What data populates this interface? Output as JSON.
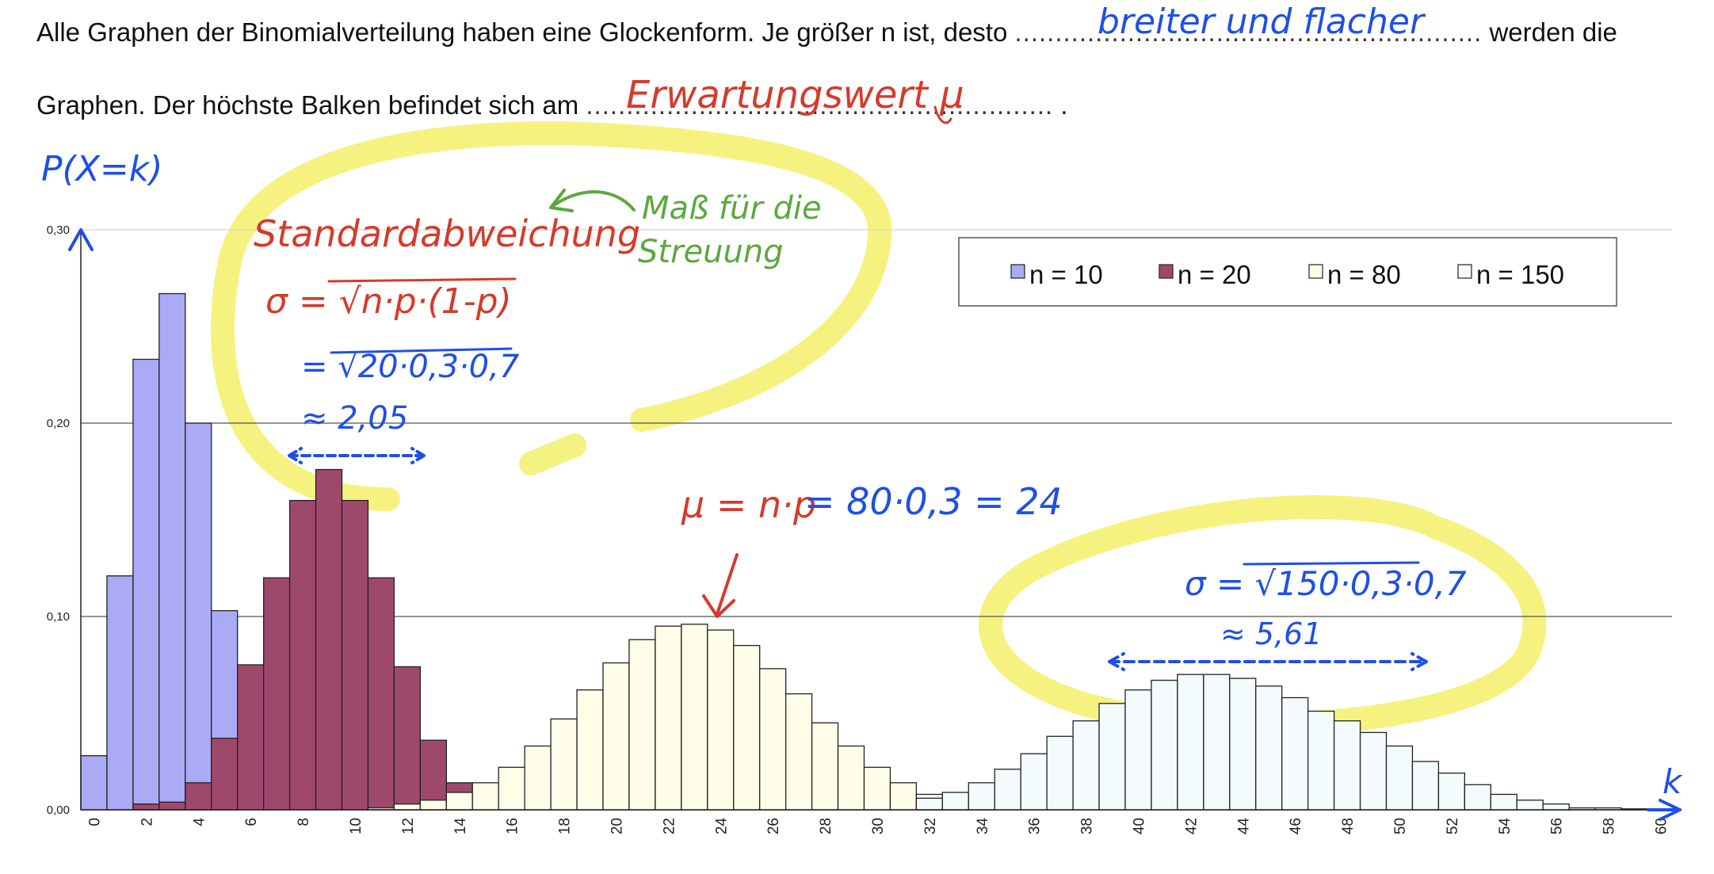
{
  "worksheet": {
    "sentence1_start": "Alle Graphen der Binomialverteilung haben eine Glockenform. Je größer n ist, desto",
    "sentence1_dots": "..........................................................",
    "sentence1_end": "werden die",
    "answer1": "breiter und flacher",
    "sentence2_start": "Graphen. Der höchste Balken befindet sich am",
    "sentence2_dots": "..........................................................",
    "sentence2_end": ".",
    "answer2": "Erwartungswert μ"
  },
  "annotations": {
    "y_axis_label": "P(X=k)",
    "x_axis_label": "k",
    "std_title": "Standardabweichung",
    "std_formula": "σ = √n·p·(1-p)",
    "std_calc": "= √20·0,3·0,7",
    "std_result": "≈ 2,05",
    "mass_note_line1": "Maß für die",
    "mass_note_line2": "Streuung",
    "mu_formula_red": "μ = n·p",
    "mu_formula_blue": "= 80·0,3 = 24",
    "sigma150_calc": "σ = √150·0,3·0,7",
    "sigma150_result": "≈ 5,61",
    "colors": {
      "blue": "#1f4fe8",
      "red": "#d63a2a",
      "green": "#5ca83e",
      "highlight": "#f3f06a"
    }
  },
  "chart_data": {
    "type": "bar",
    "x_range": [
      0,
      60
    ],
    "ylim": [
      0,
      0.3
    ],
    "y_ticks": [
      "0,00",
      "0,10",
      "0,20",
      "0,30"
    ],
    "y_tick_values": [
      0,
      0.1,
      0.2,
      0.3
    ],
    "x_tick_labels": [
      "0",
      "2",
      "4",
      "6",
      "8",
      "10",
      "12",
      "14",
      "16",
      "18",
      "20",
      "22",
      "24",
      "26",
      "28",
      "30",
      "32",
      "34",
      "36",
      "38",
      "40",
      "42",
      "44",
      "46",
      "48",
      "50",
      "52",
      "54",
      "56",
      "58",
      "60"
    ],
    "grid": "horizontal",
    "legend_position": "top-right",
    "series": [
      {
        "name": "n = 10",
        "color": "#aaaaf5",
        "start_k": 0,
        "values": [
          0.028,
          0.121,
          0.233,
          0.267,
          0.2,
          0.103
        ]
      },
      {
        "name": "n = 20",
        "color": "#9e496c",
        "start_k": 2,
        "values": [
          0.003,
          0.004,
          0.014,
          0.037,
          0.075,
          0.12,
          0.16,
          0.176,
          0.16,
          0.12,
          0.074,
          0.036,
          0.014
        ]
      },
      {
        "name": "n = 80",
        "color": "#fefde8",
        "start_k": 11,
        "values": [
          0.001,
          0.003,
          0.005,
          0.009,
          0.014,
          0.022,
          0.033,
          0.047,
          0.062,
          0.076,
          0.088,
          0.095,
          0.096,
          0.093,
          0.085,
          0.073,
          0.06,
          0.045,
          0.033,
          0.022,
          0.014,
          0.008,
          0.004,
          0.002
        ]
      },
      {
        "name": "n = 150",
        "color": "#f4fbfc",
        "start_k": 32,
        "values": [
          0.006,
          0.009,
          0.014,
          0.021,
          0.029,
          0.038,
          0.046,
          0.055,
          0.062,
          0.067,
          0.07,
          0.07,
          0.068,
          0.064,
          0.058,
          0.051,
          0.046,
          0.04,
          0.033,
          0.025,
          0.019,
          0.013,
          0.008,
          0.005,
          0.003,
          0.001,
          0.001,
          0.0005
        ]
      }
    ]
  }
}
